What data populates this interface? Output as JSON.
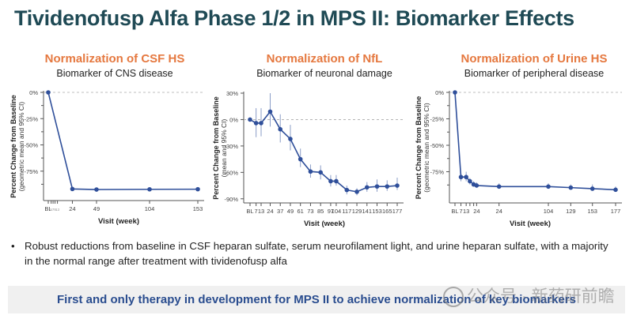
{
  "page_title": "Tividenofusp Alfa Phase 1/2 in MPS II: Biomarker Effects",
  "bullet": "Robust reductions from baseline in CSF heparan sulfate, serum neurofilament light, and urine heparan sulfate, with a majority in the normal range after treatment with tividenofusp alfa",
  "bullet_symbol": "•",
  "banner": "First and only therapy in development for MPS II to achieve normalization of key biomarkers",
  "watermark": "公众号 · 新药研前瞻",
  "colors": {
    "title": "#1f4a55",
    "panel_title": "#e5783f",
    "series": "#2f4f9a",
    "banner_text": "#2a4d8f"
  },
  "chart_data": [
    {
      "type": "line",
      "title": "Normalization of CSF HS",
      "subtitle": "Biomarker of CNS disease",
      "ylabel": "Percent Change from Baseline",
      "ylabel2": "(geometric mean and 95% CI)",
      "xlabel": "Visit (week)",
      "ylim": [
        -100,
        0
      ],
      "yticks": [
        0,
        -25,
        -50,
        -75
      ],
      "ytick_labels": [
        "0%",
        "-25%",
        "-50%",
        "-75%"
      ],
      "reference_line": 0,
      "xticks": [
        {
          "label": "BL",
          "small": false
        },
        {
          "label": "5",
          "small": true
        },
        {
          "label": "7",
          "small": true
        },
        {
          "label": "9",
          "small": true
        },
        {
          "label": "13",
          "small": true
        },
        {
          "label": "24",
          "small": false
        },
        {
          "label": "49",
          "small": false
        },
        {
          "label": "104",
          "small": false
        },
        {
          "label": "153",
          "small": false
        }
      ],
      "xtick_slots": [
        0,
        0.12,
        0.2,
        0.28,
        0.38,
        1,
        2,
        4.2,
        6.2
      ],
      "points": [
        {
          "x": "BL",
          "slot": 0,
          "y": 0
        },
        {
          "x": "24",
          "slot": 1,
          "y": -92
        },
        {
          "x": "49",
          "slot": 2,
          "y": -92.5
        },
        {
          "x": "104",
          "slot": 4.2,
          "y": -92.3
        },
        {
          "x": "153",
          "slot": 6.2,
          "y": -92.2
        }
      ]
    },
    {
      "type": "line",
      "title": "Normalization of NfL",
      "subtitle": "Biomarker of neuronal damage",
      "ylabel": "Percent Change from Baseline",
      "ylabel2": "(mean and 95% CI)",
      "xlabel": "Visit (week)",
      "ylim": [
        -92,
        30
      ],
      "yticks": [
        30,
        0,
        -30,
        -60,
        -90
      ],
      "ytick_labels": [
        "30%",
        "0%",
        "-30%",
        "-60%",
        "-90%"
      ],
      "reference_line": 0,
      "xticks": [
        {
          "label": "BL"
        },
        {
          "label": "7"
        },
        {
          "label": "13"
        },
        {
          "label": "24"
        },
        {
          "label": "37"
        },
        {
          "label": "49"
        },
        {
          "label": "61"
        },
        {
          "label": "73"
        },
        {
          "label": "85"
        },
        {
          "label": "97"
        },
        {
          "label": "104"
        },
        {
          "label": "117"
        },
        {
          "label": "129"
        },
        {
          "label": "141"
        },
        {
          "label": "153"
        },
        {
          "label": "165"
        },
        {
          "label": "177"
        }
      ],
      "xtick_slots": [
        0,
        0.6,
        1.1,
        2,
        3,
        4,
        5,
        6,
        7,
        8,
        8.55,
        9.6,
        10.6,
        11.6,
        12.6,
        13.6,
        14.6
      ],
      "points": [
        {
          "x": "BL",
          "slot": 0,
          "y": 0,
          "lo": 0,
          "hi": 0
        },
        {
          "x": "7",
          "slot": 0.6,
          "y": -4,
          "lo": -20,
          "hi": 13
        },
        {
          "x": "13",
          "slot": 1.1,
          "y": -4,
          "lo": -19,
          "hi": 13
        },
        {
          "x": "24",
          "slot": 2,
          "y": 9,
          "lo": -8,
          "hi": 30
        },
        {
          "x": "37",
          "slot": 3,
          "y": -11,
          "lo": -26,
          "hi": 6
        },
        {
          "x": "49",
          "slot": 4,
          "y": -22,
          "lo": -35,
          "hi": -6
        },
        {
          "x": "61",
          "slot": 5,
          "y": -45,
          "lo": -54,
          "hi": -33
        },
        {
          "x": "73",
          "slot": 6,
          "y": -59,
          "lo": -66,
          "hi": -51
        },
        {
          "x": "85",
          "slot": 7,
          "y": -60,
          "lo": -68,
          "hi": -52
        },
        {
          "x": "97",
          "slot": 8,
          "y": -70,
          "lo": -76,
          "hi": -63
        },
        {
          "x": "104",
          "slot": 8.55,
          "y": -70,
          "lo": -75,
          "hi": -63
        },
        {
          "x": "117",
          "slot": 9.6,
          "y": -80,
          "lo": -85,
          "hi": -75
        },
        {
          "x": "129",
          "slot": 10.6,
          "y": -82,
          "lo": -86,
          "hi": -78
        },
        {
          "x": "141",
          "slot": 11.6,
          "y": -77,
          "lo": -82,
          "hi": -71
        },
        {
          "x": "153",
          "slot": 12.6,
          "y": -76,
          "lo": -82,
          "hi": -68
        },
        {
          "x": "165",
          "slot": 13.6,
          "y": -76,
          "lo": -81,
          "hi": -69
        },
        {
          "x": "177",
          "slot": 14.6,
          "y": -75,
          "lo": -80,
          "hi": -66
        }
      ]
    },
    {
      "type": "line",
      "title": "Normalization of Urine HS",
      "subtitle": "Biomarker of peripheral disease",
      "ylabel": "Percent Change from Baseline",
      "ylabel2": "(geometric mean and 95% CI)",
      "xlabel": "Visit (week)",
      "ylim": [
        -97,
        0
      ],
      "yticks": [
        0,
        -25,
        -50,
        -75
      ],
      "ytick_labels": [
        "0%",
        "-25%",
        "-50%",
        "-75%"
      ],
      "reference_line": 0,
      "xticks": [
        {
          "label": "BL"
        },
        {
          "label": "7"
        },
        {
          "label": "13"
        },
        {
          "label": ""
        },
        {
          "label": ""
        },
        {
          "label": "24"
        },
        {
          "label": "24"
        },
        {
          "label": "104"
        },
        {
          "label": "129"
        },
        {
          "label": "153"
        },
        {
          "label": "177"
        }
      ],
      "xtick_slots": [
        0,
        0.8,
        1.5,
        2.0,
        2.5,
        2.9,
        5.9,
        12.5,
        15.5,
        18.4,
        21.5
      ],
      "points": [
        {
          "x": "BL",
          "slot": 0,
          "y": 0,
          "lo": 0,
          "hi": 0
        },
        {
          "x": "7",
          "slot": 0.8,
          "y": -80,
          "lo": -84,
          "hi": -77
        },
        {
          "x": "13",
          "slot": 1.5,
          "y": -80,
          "lo": -84,
          "hi": -75
        },
        {
          "x": "16",
          "slot": 2.0,
          "y": -84,
          "lo": -87,
          "hi": -81
        },
        {
          "x": "20",
          "slot": 2.5,
          "y": -87,
          "lo": -89,
          "hi": -84
        },
        {
          "x": "24",
          "slot": 2.9,
          "y": -88,
          "lo": -90,
          "hi": -85
        },
        {
          "x": "24",
          "slot": 5.9,
          "y": -89,
          "lo": -91,
          "hi": -86
        },
        {
          "x": "104",
          "slot": 12.5,
          "y": -89,
          "lo": -91,
          "hi": -86
        },
        {
          "x": "129",
          "slot": 15.5,
          "y": -90,
          "lo": -92,
          "hi": -87
        },
        {
          "x": "153",
          "slot": 18.4,
          "y": -91,
          "lo": -93,
          "hi": -87
        },
        {
          "x": "177",
          "slot": 21.5,
          "y": -92,
          "lo": -94,
          "hi": -89
        }
      ]
    }
  ]
}
